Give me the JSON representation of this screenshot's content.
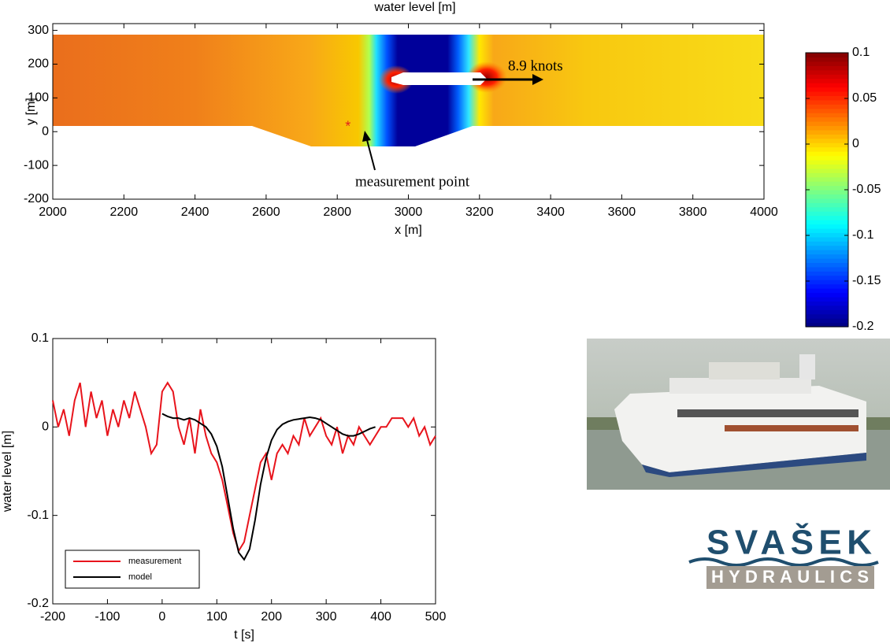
{
  "chart_data": [
    {
      "type": "contour",
      "title": "water level [m]",
      "x_label": "x [m]",
      "y_label": "y [m]",
      "xlim": [
        2000,
        4000
      ],
      "xticks": [
        2000,
        2200,
        2400,
        2600,
        2800,
        3000,
        3200,
        3400,
        3600,
        3800,
        4000
      ],
      "ylim": [
        -200,
        320
      ],
      "yticks": [
        -200,
        -100,
        0,
        100,
        200,
        300
      ],
      "colormap": "jet",
      "colorbar": {
        "lim": [
          -0.2,
          0.1
        ],
        "ticks": [
          0.1,
          0.05,
          0,
          -0.05,
          -0.1,
          -0.15,
          -0.2
        ]
      },
      "annotations": [
        "8.9 knots",
        "measurement point"
      ],
      "measurement_point": {
        "x": 2830,
        "y": 18,
        "color": "#e02020"
      }
    },
    {
      "type": "line",
      "x_label": "t [s]",
      "y_label": "water level [m]",
      "xlim": [
        -200,
        500
      ],
      "xticks": [
        -200,
        -100,
        0,
        100,
        200,
        300,
        400,
        500
      ],
      "ylim": [
        -0.2,
        0.1
      ],
      "yticks": [
        -0.2,
        -0.1,
        0,
        0.1
      ],
      "legend": "lower left",
      "series": [
        {
          "name": "measurement",
          "color": "#e8141c",
          "x": [
            -200,
            -190,
            -180,
            -170,
            -160,
            -150,
            -140,
            -130,
            -120,
            -110,
            -100,
            -90,
            -80,
            -70,
            -60,
            -50,
            -40,
            -30,
            -20,
            -10,
            0,
            10,
            20,
            30,
            40,
            50,
            60,
            70,
            80,
            90,
            100,
            110,
            120,
            130,
            140,
            150,
            160,
            170,
            180,
            190,
            200,
            210,
            220,
            230,
            240,
            250,
            260,
            270,
            280,
            290,
            300,
            310,
            320,
            330,
            340,
            350,
            360,
            370,
            380,
            390,
            400,
            410,
            420,
            430,
            440,
            450,
            460,
            470,
            480,
            490,
            500
          ],
          "values": [
            0.03,
            0.0,
            0.02,
            -0.01,
            0.03,
            0.05,
            0.0,
            0.04,
            0.01,
            0.03,
            -0.01,
            0.02,
            0.0,
            0.03,
            0.01,
            0.04,
            0.02,
            0.0,
            -0.03,
            -0.02,
            0.04,
            0.05,
            0.04,
            0.0,
            -0.02,
            0.01,
            -0.03,
            0.02,
            -0.01,
            -0.03,
            -0.04,
            -0.06,
            -0.09,
            -0.12,
            -0.14,
            -0.13,
            -0.1,
            -0.07,
            -0.04,
            -0.03,
            -0.06,
            -0.03,
            -0.02,
            -0.03,
            -0.01,
            -0.02,
            0.01,
            -0.01,
            0.0,
            0.01,
            -0.01,
            -0.02,
            0.0,
            -0.03,
            -0.01,
            -0.02,
            0.0,
            -0.01,
            -0.02,
            -0.01,
            0.0,
            0.0,
            0.01,
            0.01,
            0.01,
            0.0,
            0.01,
            -0.01,
            0.0,
            -0.02,
            -0.01
          ]
        },
        {
          "name": "model",
          "color": "#000000",
          "x": [
            0,
            10,
            20,
            30,
            40,
            50,
            60,
            70,
            80,
            90,
            100,
            110,
            120,
            130,
            140,
            150,
            160,
            170,
            180,
            190,
            200,
            210,
            220,
            230,
            240,
            250,
            260,
            270,
            280,
            290,
            300,
            310,
            320,
            330,
            340,
            350,
            360,
            370,
            380,
            390
          ],
          "values": [
            0.015,
            0.012,
            0.01,
            0.01,
            0.008,
            0.01,
            0.008,
            0.004,
            0.0,
            -0.008,
            -0.022,
            -0.045,
            -0.08,
            -0.115,
            -0.142,
            -0.15,
            -0.138,
            -0.105,
            -0.065,
            -0.035,
            -0.015,
            -0.003,
            0.003,
            0.006,
            0.008,
            0.009,
            0.01,
            0.011,
            0.01,
            0.008,
            0.004,
            0.0,
            -0.004,
            -0.008,
            -0.01,
            -0.01,
            -0.008,
            -0.005,
            -0.002,
            0.0
          ]
        }
      ]
    }
  ],
  "logo": {
    "name": "SVAŠEK",
    "subtitle": "HYDRAULICS"
  }
}
